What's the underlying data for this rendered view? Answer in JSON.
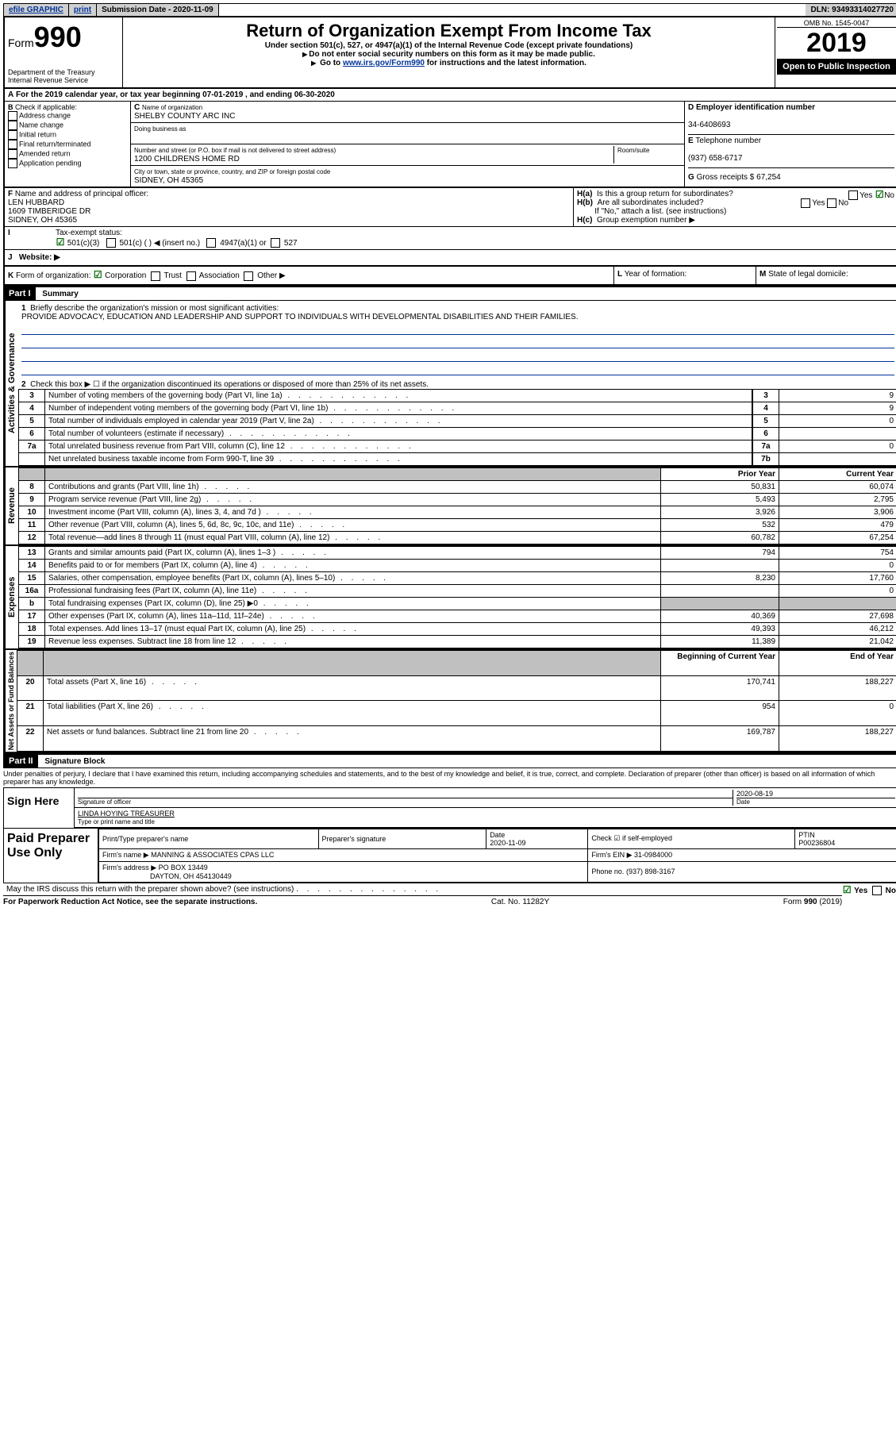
{
  "topbar": {
    "efile": "efile GRAPHIC",
    "print": "print",
    "subdate_label": "Submission Date - 2020-11-09",
    "dln": "DLN: 93493314027720"
  },
  "header": {
    "form_label": "Form",
    "form990": "990",
    "dept": "Department of the Treasury",
    "irs": "Internal Revenue Service",
    "title": "Return of Organization Exempt From Income Tax",
    "sub1": "Under section 501(c), 527, or 4947(a)(1) of the Internal Revenue Code (except private foundations)",
    "sub2": "Do not enter social security numbers on this form as it may be made public.",
    "sub3_pre": "Go to ",
    "sub3_link": "www.irs.gov/Form990",
    "sub3_post": " for instructions and the latest information.",
    "omb": "OMB No. 1545-0047",
    "year": "2019",
    "open": "Open to Public Inspection"
  },
  "A": "For the 2019 calendar year, or tax year beginning 07-01-2019       , and ending 06-30-2020",
  "B": {
    "label": "Check if applicable:",
    "addr": "Address change",
    "name": "Name change",
    "init": "Initial return",
    "final": "Final return/terminated",
    "amend": "Amended return",
    "app": "Application pending"
  },
  "C": {
    "name_label": "Name of organization",
    "name": "SHELBY COUNTY ARC INC",
    "dba_label": "Doing business as",
    "street_label": "Number and street (or P.O. box if mail is not delivered to street address)",
    "room_label": "Room/suite",
    "street": "1200 CHILDRENS HOME RD",
    "city_label": "City or town, state or province, country, and ZIP or foreign postal code",
    "city": "SIDNEY, OH   45365"
  },
  "D": {
    "label": "Employer identification number",
    "val": "34-6408693"
  },
  "E": {
    "label": "Telephone number",
    "val": "(937) 658-6717"
  },
  "G": {
    "label": "Gross receipts $",
    "val": "67,254"
  },
  "F": {
    "label": "Name and address of principal officer:",
    "name": "LEN HUBBARD",
    "addr1": "1609 TIMBERIDGE DR",
    "addr2": "SIDNEY, OH   45365"
  },
  "H": {
    "a": "Is this a group return for subordinates?",
    "b": "Are all subordinates included?",
    "b_note": "If \"No,\" attach a list. (see instructions)",
    "c": "Group exemption number ▶",
    "yes": "Yes",
    "no": "No"
  },
  "I": {
    "label": "Tax-exempt status:",
    "c501c3": "501(c)(3)",
    "c501c": "501(c) (   ) ◀ (insert no.)",
    "c4947": "4947(a)(1) or",
    "c527": "527"
  },
  "J": {
    "label": "Website: ▶"
  },
  "K": {
    "label": "Form of organization:",
    "corp": "Corporation",
    "trust": "Trust",
    "assoc": "Association",
    "other": "Other ▶"
  },
  "L": "Year of formation:",
  "M": "State of legal domicile:",
  "part1": {
    "tag": "Part I",
    "title": "Summary"
  },
  "summary": {
    "line1_label": "Briefly describe the organization's mission or most significant activities:",
    "line1_text": "PROVIDE ADVOCACY, EDUCATION AND LEADERSHIP AND SUPPORT TO INDIVIDUALS WITH DEVELOPMENTAL DISABILITIES AND THEIR FAMILIES.",
    "line2": "Check this box ▶ ☐ if the organization discontinued its operations or disposed of more than 25% of its net assets.",
    "rows_gov": [
      {
        "n": "3",
        "t": "Number of voting members of the governing body (Part VI, line 1a)",
        "box": "3",
        "v": "9"
      },
      {
        "n": "4",
        "t": "Number of independent voting members of the governing body (Part VI, line 1b)",
        "box": "4",
        "v": "9"
      },
      {
        "n": "5",
        "t": "Total number of individuals employed in calendar year 2019 (Part V, line 2a)",
        "box": "5",
        "v": "0"
      },
      {
        "n": "6",
        "t": "Total number of volunteers (estimate if necessary)",
        "box": "6",
        "v": ""
      },
      {
        "n": "7a",
        "t": "Total unrelated business revenue from Part VIII, column (C), line 12",
        "box": "7a",
        "v": "0"
      },
      {
        "n": "",
        "t": "Net unrelated business taxable income from Form 990-T, line 39",
        "box": "7b",
        "v": ""
      }
    ],
    "prior": "Prior Year",
    "current": "Current Year",
    "rev": [
      {
        "n": "8",
        "t": "Contributions and grants (Part VIII, line 1h)",
        "p": "50,831",
        "c": "60,074"
      },
      {
        "n": "9",
        "t": "Program service revenue (Part VIII, line 2g)",
        "p": "5,493",
        "c": "2,795"
      },
      {
        "n": "10",
        "t": "Investment income (Part VIII, column (A), lines 3, 4, and 7d )",
        "p": "3,926",
        "c": "3,906"
      },
      {
        "n": "11",
        "t": "Other revenue (Part VIII, column (A), lines 5, 6d, 8c, 9c, 10c, and 11e)",
        "p": "532",
        "c": "479"
      },
      {
        "n": "12",
        "t": "Total revenue—add lines 8 through 11 (must equal Part VIII, column (A), line 12)",
        "p": "60,782",
        "c": "67,254"
      }
    ],
    "exp": [
      {
        "n": "13",
        "t": "Grants and similar amounts paid (Part IX, column (A), lines 1–3 )",
        "p": "794",
        "c": "754"
      },
      {
        "n": "14",
        "t": "Benefits paid to or for members (Part IX, column (A), line 4)",
        "p": "",
        "c": "0"
      },
      {
        "n": "15",
        "t": "Salaries, other compensation, employee benefits (Part IX, column (A), lines 5–10)",
        "p": "8,230",
        "c": "17,760"
      },
      {
        "n": "16a",
        "t": "Professional fundraising fees (Part IX, column (A), line 11e)",
        "p": "",
        "c": "0"
      },
      {
        "n": "b",
        "t": "Total fundraising expenses (Part IX, column (D), line 25) ▶0",
        "p": "SHADE",
        "c": "SHADE"
      },
      {
        "n": "17",
        "t": "Other expenses (Part IX, column (A), lines 11a–11d, 11f–24e)",
        "p": "40,369",
        "c": "27,698"
      },
      {
        "n": "18",
        "t": "Total expenses. Add lines 13–17 (must equal Part IX, column (A), line 25)",
        "p": "49,393",
        "c": "46,212"
      },
      {
        "n": "19",
        "t": "Revenue less expenses. Subtract line 18 from line 12",
        "p": "11,389",
        "c": "21,042"
      }
    ],
    "begin": "Beginning of Current Year",
    "end": "End of Year",
    "net": [
      {
        "n": "20",
        "t": "Total assets (Part X, line 16)",
        "p": "170,741",
        "c": "188,227"
      },
      {
        "n": "21",
        "t": "Total liabilities (Part X, line 26)",
        "p": "954",
        "c": "0"
      },
      {
        "n": "22",
        "t": "Net assets or fund balances. Subtract line 21 from line 20",
        "p": "169,787",
        "c": "188,227"
      }
    ]
  },
  "sidebars": {
    "gov": "Activities & Governance",
    "rev": "Revenue",
    "exp": "Expenses",
    "net": "Net Assets or Fund Balances"
  },
  "part2": {
    "tag": "Part II",
    "title": "Signature Block"
  },
  "penalties": "Under penalties of perjury, I declare that I have examined this return, including accompanying schedules and statements, and to the best of my knowledge and belief, it is true, correct, and complete. Declaration of preparer (other than officer) is based on all information of which preparer has any knowledge.",
  "sign": {
    "here": "Sign Here",
    "sig_label": "Signature of officer",
    "date_label": "Date",
    "date": "2020-08-19",
    "name": "LINDA HOYING  TREASURER",
    "name_label": "Type or print name and title"
  },
  "paid": {
    "label": "Paid Preparer Use Only",
    "h_name": "Print/Type preparer's name",
    "h_sig": "Preparer's signature",
    "h_date": "Date",
    "date": "2020-11-09",
    "h_check": "Check ☑ if self-employed",
    "h_ptin": "PTIN",
    "ptin": "P00236804",
    "firm_label": "Firm's name     ▶",
    "firm": "MANNING & ASSOCIATES CPAS LLC",
    "ein_label": "Firm's EIN ▶",
    "ein": "31-0984000",
    "addr_label": "Firm's address ▶",
    "addr1": "PO BOX 13449",
    "addr2": "DAYTON, OH   454130449",
    "phone_label": "Phone no.",
    "phone": "(937) 898-3167"
  },
  "discuss": "May the IRS discuss this return with the preparer shown above? (see instructions)",
  "footer": {
    "pra": "For Paperwork Reduction Act Notice, see the separate instructions.",
    "cat": "Cat. No. 11282Y",
    "form": "Form 990 (2019)"
  }
}
